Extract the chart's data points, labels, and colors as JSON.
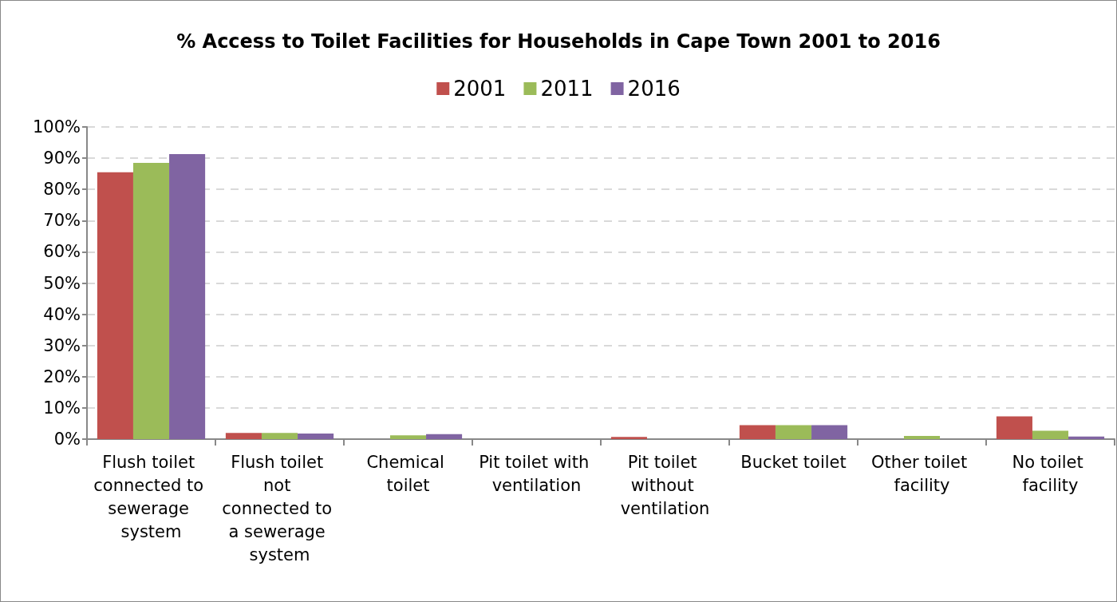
{
  "chart_data": {
    "type": "bar",
    "title": "% Access to Toilet Facilities for Households in Cape Town 2001 to 2016",
    "categories": [
      "Flush toilet connected to sewerage system",
      "Flush toilet not connected to a sewerage system",
      "Chemical toilet",
      "Pit toilet with ventilation",
      "Pit toilet without ventilation",
      "Bucket toilet",
      "Other toilet facility",
      "No toilet facility"
    ],
    "series": [
      {
        "name": "2001",
        "color": "#c0504d",
        "values": [
          85.5,
          2.0,
          0,
          0,
          0.7,
          4.5,
          0,
          7.3
        ]
      },
      {
        "name": "2011",
        "color": "#9bbb59",
        "values": [
          88.5,
          2.0,
          1.2,
          0,
          0,
          4.5,
          1.0,
          2.7
        ]
      },
      {
        "name": "2016",
        "color": "#8064a2",
        "values": [
          91.3,
          1.8,
          1.6,
          0,
          0,
          4.5,
          0,
          0.8
        ]
      }
    ],
    "ylim": [
      0,
      100
    ],
    "yticks": [
      {
        "value": 0,
        "label": "0%"
      },
      {
        "value": 10,
        "label": "10%"
      },
      {
        "value": 20,
        "label": "20%"
      },
      {
        "value": 30,
        "label": "30%"
      },
      {
        "value": 40,
        "label": "40%"
      },
      {
        "value": 50,
        "label": "50%"
      },
      {
        "value": 60,
        "label": "60%"
      },
      {
        "value": 70,
        "label": "70%"
      },
      {
        "value": 80,
        "label": "80%"
      },
      {
        "value": 90,
        "label": "90%"
      },
      {
        "value": 100,
        "label": "100%"
      }
    ],
    "grid": "y",
    "legend": "top"
  }
}
